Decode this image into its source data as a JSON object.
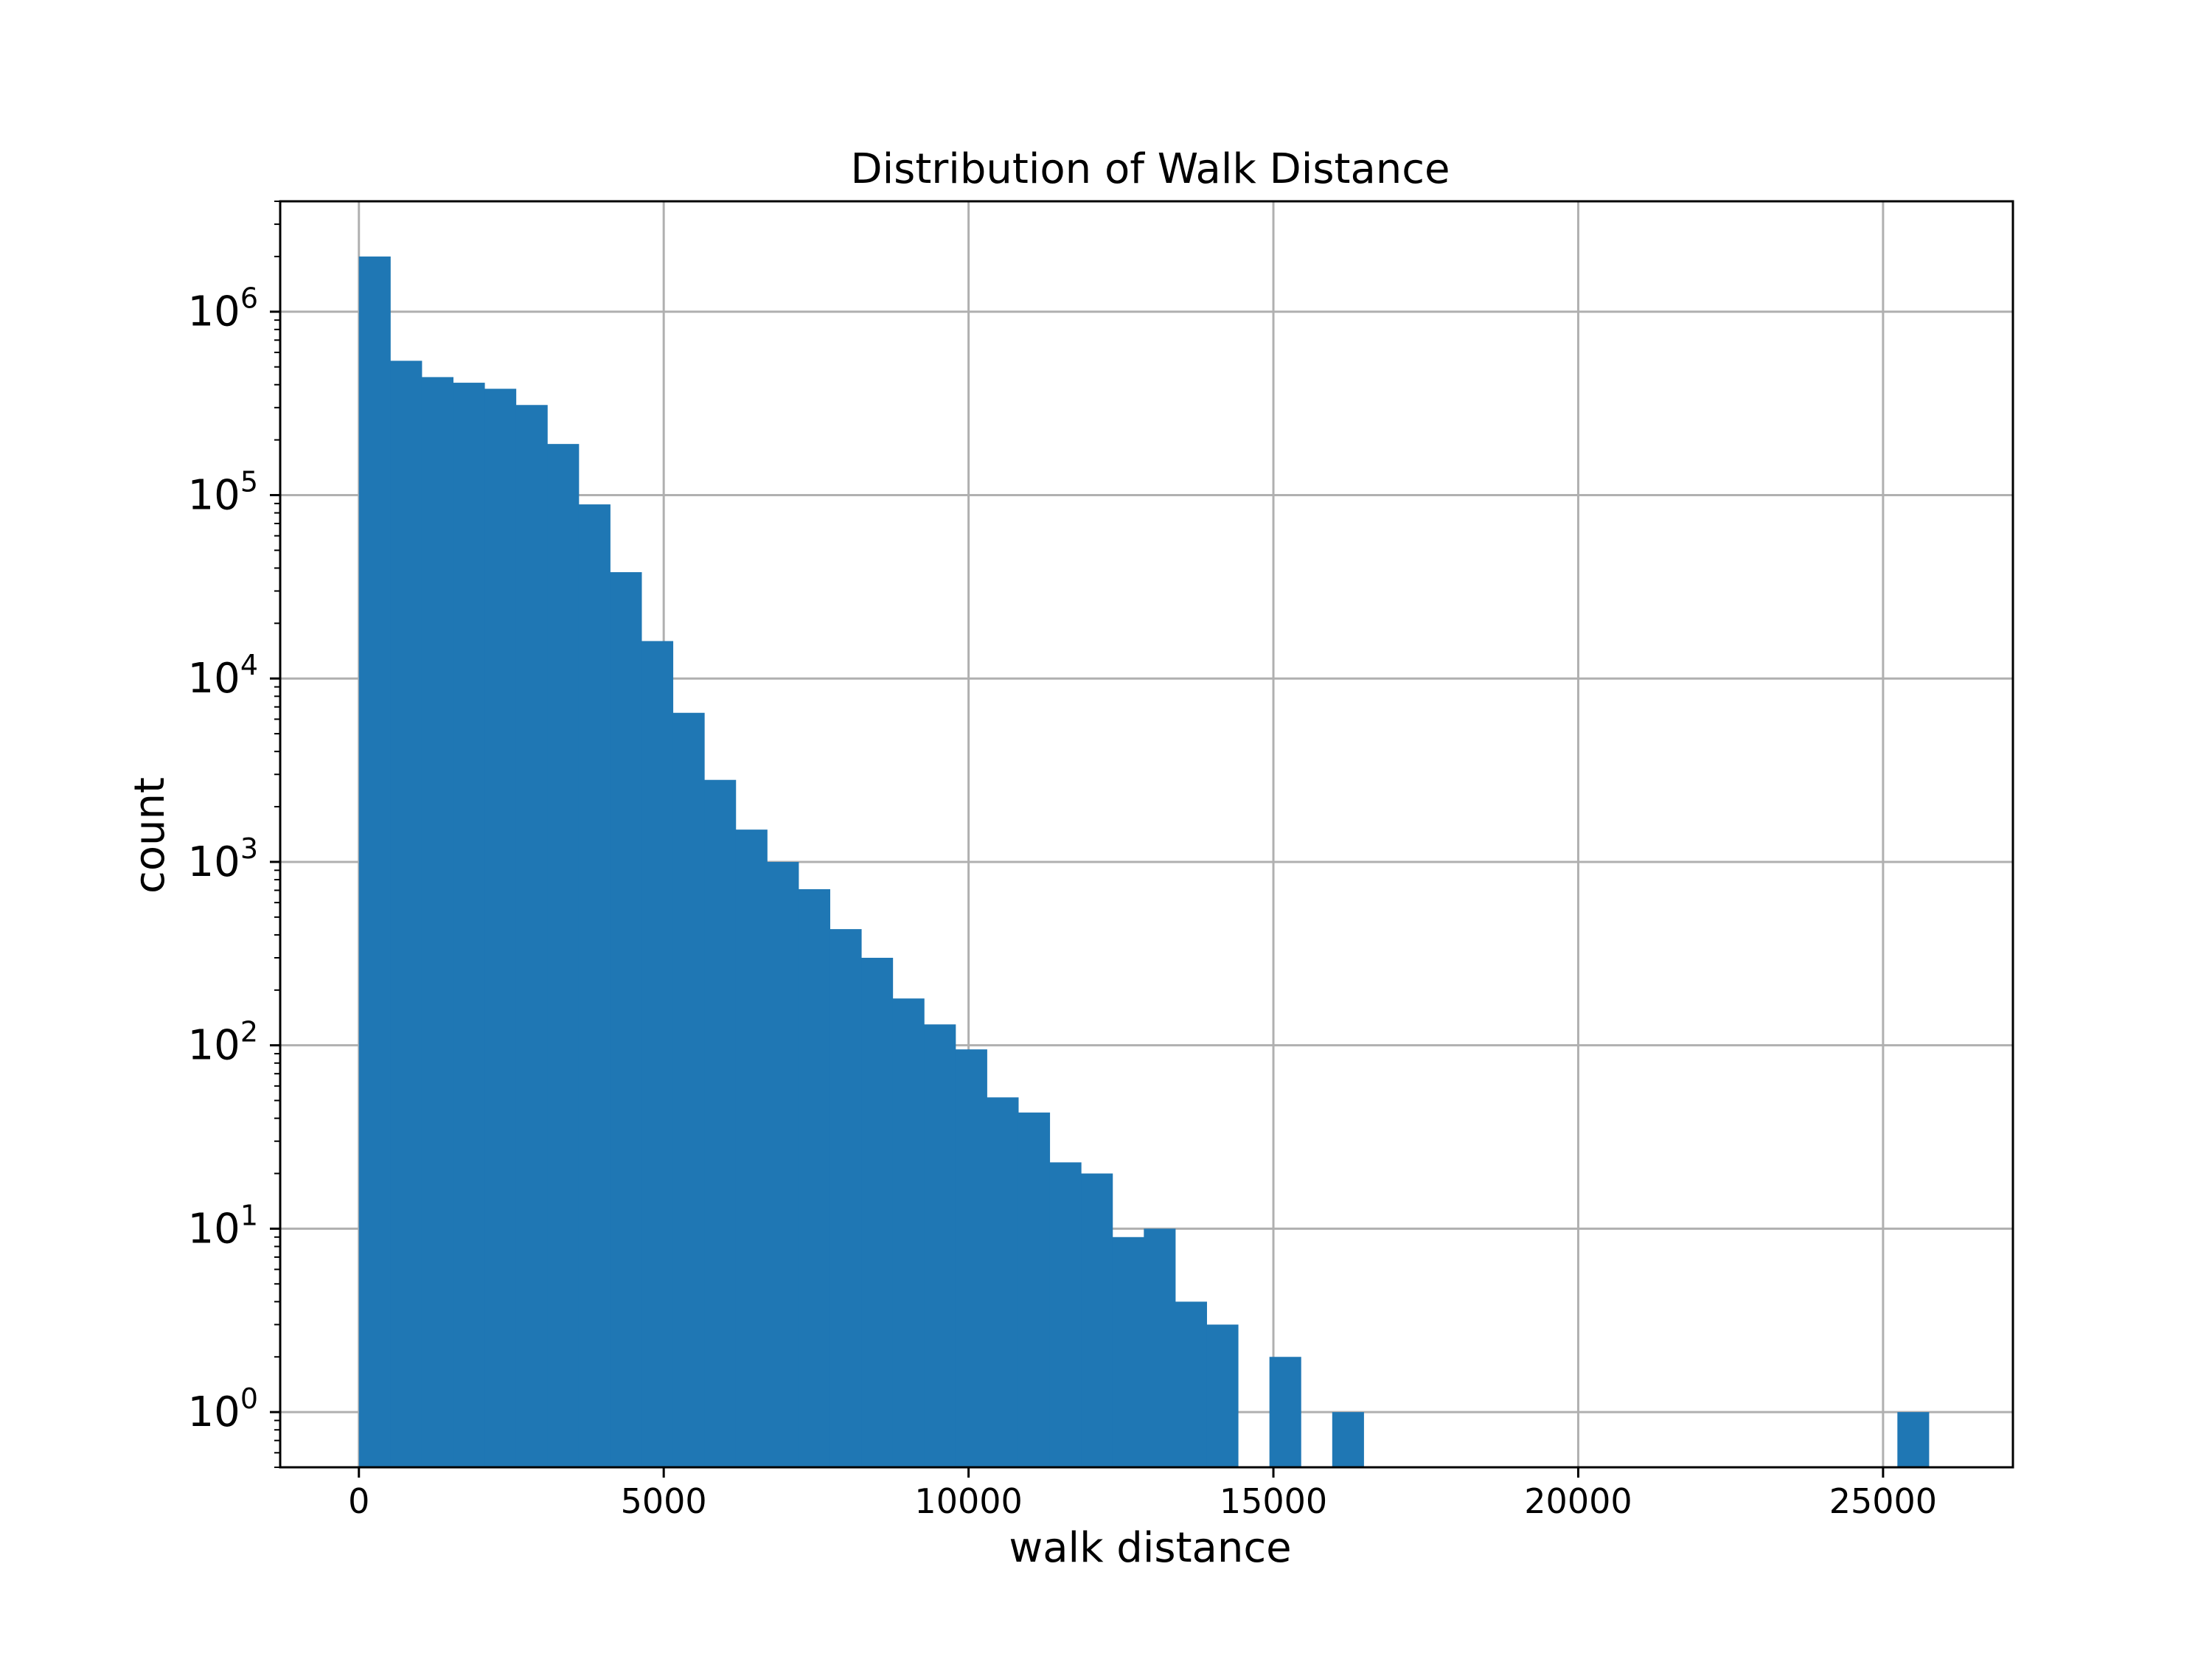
{
  "chart_data": {
    "type": "bar",
    "title": "Distribution of Walk Distance",
    "xlabel": "walk distance",
    "ylabel": "count",
    "yscale": "log",
    "xlim": [
      -1291,
      27130
    ],
    "ylim": [
      0.5,
      4000000
    ],
    "grid": true,
    "bar_color": "#1f77b4",
    "bin_width": 515,
    "bins": [
      {
        "x": 0,
        "count": 2000000
      },
      {
        "x": 515,
        "count": 540000
      },
      {
        "x": 1030,
        "count": 440000
      },
      {
        "x": 1545,
        "count": 410000
      },
      {
        "x": 2060,
        "count": 380000
      },
      {
        "x": 2575,
        "count": 310000
      },
      {
        "x": 3090,
        "count": 190000
      },
      {
        "x": 3605,
        "count": 89000
      },
      {
        "x": 4120,
        "count": 38000
      },
      {
        "x": 4635,
        "count": 16000
      },
      {
        "x": 5150,
        "count": 6500
      },
      {
        "x": 5665,
        "count": 2800
      },
      {
        "x": 6180,
        "count": 1500
      },
      {
        "x": 6695,
        "count": 1000
      },
      {
        "x": 7210,
        "count": 710
      },
      {
        "x": 7725,
        "count": 430
      },
      {
        "x": 8240,
        "count": 300
      },
      {
        "x": 8755,
        "count": 180
      },
      {
        "x": 9270,
        "count": 130
      },
      {
        "x": 9785,
        "count": 95
      },
      {
        "x": 10300,
        "count": 52
      },
      {
        "x": 10815,
        "count": 43
      },
      {
        "x": 11330,
        "count": 23
      },
      {
        "x": 11845,
        "count": 20
      },
      {
        "x": 12360,
        "count": 9
      },
      {
        "x": 12875,
        "count": 10
      },
      {
        "x": 13390,
        "count": 4
      },
      {
        "x": 13905,
        "count": 3
      },
      {
        "x": 14935,
        "count": 2
      },
      {
        "x": 15965,
        "count": 1
      },
      {
        "x": 25235,
        "count": 1
      }
    ],
    "x_ticks": [
      {
        "value": 0,
        "label": "0"
      },
      {
        "value": 5000,
        "label": "5000"
      },
      {
        "value": 10000,
        "label": "10000"
      },
      {
        "value": 15000,
        "label": "15000"
      },
      {
        "value": 20000,
        "label": "20000"
      },
      {
        "value": 25000,
        "label": "25000"
      }
    ],
    "y_ticks": [
      {
        "value": 1,
        "base": "10",
        "exp": "0"
      },
      {
        "value": 10,
        "base": "10",
        "exp": "1"
      },
      {
        "value": 100,
        "base": "10",
        "exp": "2"
      },
      {
        "value": 1000,
        "base": "10",
        "exp": "3"
      },
      {
        "value": 10000,
        "base": "10",
        "exp": "4"
      },
      {
        "value": 100000,
        "base": "10",
        "exp": "5"
      },
      {
        "value": 1000000,
        "base": "10",
        "exp": "6"
      }
    ]
  }
}
